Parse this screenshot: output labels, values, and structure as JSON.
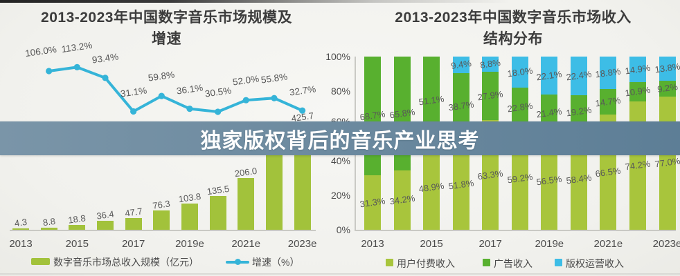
{
  "banner": {
    "text": "独家版权背后的音乐产业思考"
  },
  "colors": {
    "left_bar": "#a2c23b",
    "growth_line": "#35b4d8",
    "user_pay": "#a8c53c",
    "ads": "#58b02f",
    "copyright": "#3dbde6",
    "banner_left": "#7a95a8",
    "banner_right": "#5d7e96"
  },
  "chart_data": [
    {
      "type": "bar",
      "subtype": "bar+line combo",
      "title_line1": "2013-2023年中国数字音乐市场规模及",
      "title_line2": "增速",
      "categories": [
        "2013",
        "2014",
        "2015",
        "2016",
        "2017",
        "2018",
        "2019e",
        "2020e",
        "2021e",
        "2022e",
        "2023e"
      ],
      "x_axis_labels": [
        "2013",
        "2015",
        "2017",
        "2019e",
        "2021e",
        "2023e"
      ],
      "x_axis_label_positions": [
        0,
        2,
        4,
        6,
        8,
        10
      ],
      "bars": {
        "legend": "数字音乐市场总收入规模（亿元）",
        "values": [
          4.3,
          8.8,
          18.8,
          36.4,
          47.7,
          76.3,
          103.8,
          135.5,
          206.0,
          320.9,
          425.7
        ],
        "labels": [
          "4.3",
          "8.8",
          "18.8",
          "36.4",
          "47.7",
          "76.3",
          "103.8",
          "135.5",
          "206.0",
          "",
          "425.7"
        ]
      },
      "line": {
        "legend": "增速（%）",
        "start_category": "2014",
        "values": [
          106.0,
          113.2,
          93.4,
          31.1,
          59.8,
          36.1,
          30.5,
          52.0,
          55.8,
          32.7
        ],
        "labels": [
          "106.0%",
          "113.2%",
          "93.4%",
          "31.1%",
          "59.8%",
          "36.1%",
          "30.5%",
          "52.0%",
          "55.8%",
          "32.7%"
        ]
      }
    },
    {
      "type": "bar",
      "subtype": "100% stacked bar",
      "title_line1": "2013-2023年中国数字音乐市场收入",
      "title_line2": "结构分布",
      "categories": [
        "2013",
        "2014",
        "2015",
        "2016",
        "2017",
        "2018",
        "2019e",
        "2020e",
        "2021e",
        "2022e",
        "2023e"
      ],
      "x_axis_labels": [
        "2013",
        "2015",
        "2017",
        "2019e",
        "2021e",
        "2023e"
      ],
      "x_axis_label_positions": [
        0,
        2,
        4,
        6,
        8,
        10
      ],
      "y_ticks": [
        "100%",
        "80%",
        "60%",
        "40%",
        "20%",
        "0%"
      ],
      "ylim": [
        0,
        100
      ],
      "series": [
        {
          "name": "用户付费收入",
          "values": [
            31.3,
            34.2,
            48.9,
            51.8,
            63.3,
            59.2,
            56.5,
            58.4,
            66.5,
            74.2,
            77.0
          ],
          "labels": [
            "31.3%",
            "34.2%",
            "48.9%",
            "51.8%",
            "63.3%",
            "59.2%",
            "56.5%",
            "58.4%",
            "66.5%",
            "74.2%",
            "77.0%"
          ]
        },
        {
          "name": "广告收入",
          "values": [
            68.7,
            65.8,
            51.1,
            38.7,
            27.9,
            22.8,
            21.4,
            19.2,
            14.7,
            10.9,
            9.2
          ],
          "labels": [
            "68.7%",
            "65.8%",
            "51.1%",
            "38.7%",
            "27.9%",
            "22.8%",
            "21.4%",
            "19.2%",
            "14.7%",
            "10.9%",
            "9.2%"
          ]
        },
        {
          "name": "版权运营收入",
          "values": [
            0,
            0,
            0,
            9.4,
            8.8,
            18.0,
            22.1,
            22.4,
            18.8,
            14.9,
            13.8
          ],
          "labels": [
            "",
            "",
            "",
            "9.4%",
            "8.8%",
            "18.0%",
            "22.1%",
            "22.4%",
            "18.8%",
            "14.9%",
            "13.8%"
          ]
        }
      ]
    }
  ]
}
